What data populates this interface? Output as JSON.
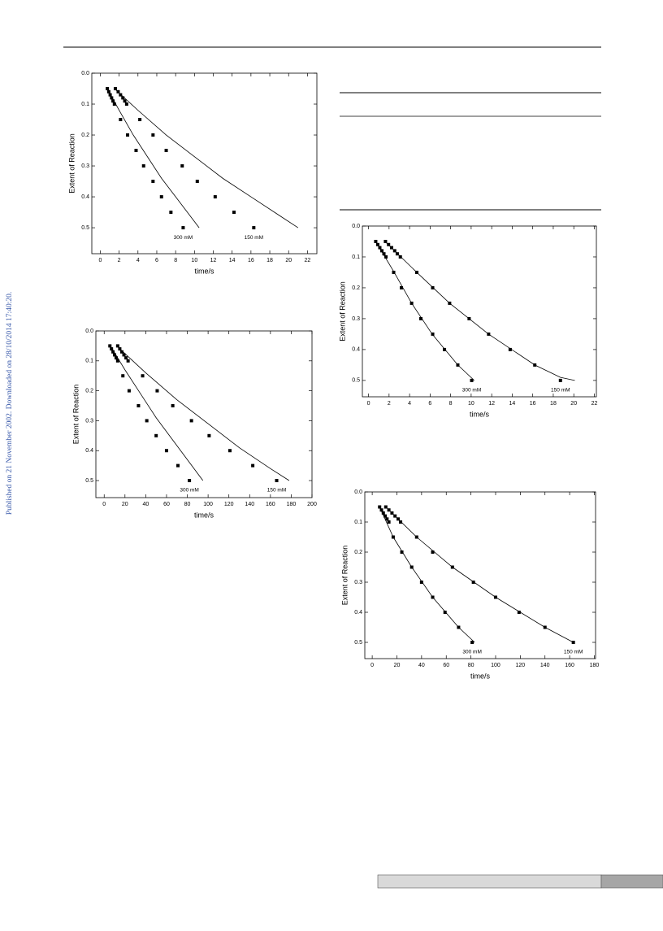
{
  "sidebar": "Published on 21 November 2002. Downloaded on 28/10/2014 17:40:20.",
  "chart_data": [
    {
      "type": "scatter",
      "x_label": "time/s",
      "y_label": "Extent of Reaction",
      "xlim": [
        -0.9,
        23
      ],
      "ylim": [
        0.584,
        0
      ],
      "xticks": [
        0,
        2,
        4,
        6,
        8,
        10,
        12,
        14,
        16,
        18,
        20,
        22
      ],
      "yticks": [
        {
          "value": 0,
          "label": "0.0"
        },
        0.1,
        0.2,
        0.3,
        0.4,
        0.5
      ],
      "color": "#000000",
      "series": [
        {
          "name": "300 mM",
          "x": [
            0.75,
            0.9,
            1.05,
            1.2,
            1.35,
            1.5,
            2.15,
            2.9,
            3.8,
            4.6,
            5.6,
            6.5,
            7.5,
            8.8
          ],
          "values": [
            0.05,
            0.06,
            0.07,
            0.08,
            0.09,
            0.1,
            0.15,
            0.2,
            0.25,
            0.3,
            0.35,
            0.4,
            0.45,
            0.5
          ],
          "fit_x": [
            0.75,
            2,
            3.5,
            5,
            6.5,
            8,
            10.5
          ],
          "fit_values": [
            0.05,
            0.12,
            0.2,
            0.27,
            0.34,
            0.4,
            0.5
          ]
        },
        {
          "name": "150 mM",
          "x": [
            1.6,
            1.9,
            2.15,
            2.4,
            2.6,
            2.8,
            4.2,
            5.6,
            7.0,
            8.7,
            10.3,
            12.2,
            14.2,
            16.3
          ],
          "values": [
            0.05,
            0.06,
            0.07,
            0.08,
            0.09,
            0.1,
            0.15,
            0.2,
            0.25,
            0.3,
            0.35,
            0.4,
            0.45,
            0.5
          ],
          "fit_x": [
            1.5,
            4,
            7,
            10,
            13,
            16,
            19,
            21
          ],
          "fit_values": [
            0.05,
            0.12,
            0.2,
            0.27,
            0.34,
            0.4,
            0.46,
            0.5
          ]
        }
      ]
    },
    {
      "type": "scatter",
      "x_label": "time/s",
      "y_label": "Extent of Reaction",
      "xlim": [
        -8,
        200
      ],
      "ylim": [
        0.557,
        0
      ],
      "xticks": [
        0,
        20,
        40,
        60,
        80,
        100,
        120,
        140,
        160,
        180,
        200
      ],
      "yticks": [
        {
          "value": 0,
          "label": "0.0"
        },
        0.1,
        0.2,
        0.3,
        0.4,
        0.5
      ],
      "color": "#000000",
      "series": [
        {
          "name": "300 mM",
          "x": [
            5.5,
            7,
            8.5,
            10,
            11.5,
            13,
            18,
            24,
            33,
            41,
            50,
            60,
            71,
            82
          ],
          "values": [
            0.05,
            0.06,
            0.07,
            0.08,
            0.09,
            0.1,
            0.15,
            0.2,
            0.25,
            0.3,
            0.35,
            0.4,
            0.45,
            0.5
          ],
          "fit_x": [
            6,
            20,
            35,
            50,
            65,
            80,
            95
          ],
          "fit_values": [
            0.05,
            0.13,
            0.21,
            0.29,
            0.36,
            0.43,
            0.5
          ]
        },
        {
          "name": "150 mM",
          "x": [
            13,
            15,
            17,
            19,
            21,
            23,
            37,
            51,
            66,
            84,
            101,
            121,
            143,
            166
          ],
          "values": [
            0.05,
            0.06,
            0.07,
            0.08,
            0.09,
            0.1,
            0.15,
            0.2,
            0.25,
            0.3,
            0.35,
            0.4,
            0.45,
            0.5
          ],
          "fit_x": [
            12,
            40,
            70,
            100,
            130,
            160,
            178
          ],
          "fit_values": [
            0.05,
            0.14,
            0.23,
            0.31,
            0.39,
            0.46,
            0.5
          ]
        }
      ]
    },
    {
      "type": "scatter",
      "x_label": "time/s",
      "y_label": "Extent of Reaction",
      "xlim": [
        -0.6,
        22.2
      ],
      "ylim": [
        0.553,
        0
      ],
      "xticks": [
        0,
        2,
        4,
        6,
        8,
        10,
        12,
        14,
        16,
        18,
        20,
        22
      ],
      "yticks": [
        {
          "value": 0,
          "label": "0.0"
        },
        0.1,
        0.2,
        0.3,
        0.4,
        0.5
      ],
      "color": "#000000",
      "series": [
        {
          "name": "300 mM",
          "x": [
            0.7,
            0.9,
            1.1,
            1.3,
            1.5,
            1.7,
            2.45,
            3.2,
            4.2,
            5.1,
            6.25,
            7.4,
            8.7,
            10.05
          ],
          "values": [
            0.05,
            0.06,
            0.07,
            0.08,
            0.09,
            0.1,
            0.15,
            0.2,
            0.25,
            0.3,
            0.35,
            0.4,
            0.45,
            0.5
          ],
          "fit_x": [
            0.7,
            2.5,
            4.2,
            6.2,
            8.7,
            10.3
          ],
          "fit_values": [
            0.05,
            0.15,
            0.25,
            0.35,
            0.45,
            0.5
          ]
        },
        {
          "name": "150 mM",
          "x": [
            1.65,
            1.95,
            2.25,
            2.55,
            2.8,
            3.1,
            4.7,
            6.25,
            7.9,
            9.8,
            11.7,
            13.8,
            16.2,
            18.7
          ],
          "values": [
            0.05,
            0.06,
            0.07,
            0.08,
            0.09,
            0.1,
            0.15,
            0.2,
            0.25,
            0.3,
            0.35,
            0.4,
            0.45,
            0.5
          ],
          "fit_x": [
            1.6,
            4.7,
            7.9,
            11.7,
            16.2,
            18.7,
            20.1
          ],
          "fit_values": [
            0.05,
            0.15,
            0.25,
            0.35,
            0.45,
            0.49,
            0.5
          ]
        }
      ]
    },
    {
      "type": "scatter",
      "x_label": "time/s",
      "y_label": "Extent of Reaction",
      "xlim": [
        -6,
        181
      ],
      "ylim": [
        0.554,
        0
      ],
      "xticks": [
        0,
        20,
        40,
        60,
        80,
        100,
        120,
        140,
        160,
        180
      ],
      "yticks": [
        {
          "value": 0,
          "label": "0.0"
        },
        0.1,
        0.2,
        0.3,
        0.4,
        0.5
      ],
      "color": "#000000",
      "series": [
        {
          "name": "300 mM",
          "x": [
            6,
            7.5,
            9,
            10.5,
            12,
            13.5,
            17,
            24,
            32,
            40,
            49,
            59,
            70,
            81
          ],
          "values": [
            0.05,
            0.06,
            0.07,
            0.08,
            0.09,
            0.1,
            0.15,
            0.2,
            0.25,
            0.3,
            0.35,
            0.4,
            0.45,
            0.5
          ],
          "fit_x": [
            6,
            17,
            32,
            49,
            70,
            83
          ],
          "fit_values": [
            0.05,
            0.15,
            0.25,
            0.35,
            0.45,
            0.5
          ]
        },
        {
          "name": "150 mM",
          "x": [
            11,
            13.5,
            16,
            18.5,
            21,
            23,
            36,
            49,
            65,
            82,
            100,
            119,
            140,
            163
          ],
          "values": [
            0.05,
            0.06,
            0.07,
            0.08,
            0.09,
            0.1,
            0.15,
            0.2,
            0.25,
            0.3,
            0.35,
            0.4,
            0.45,
            0.5
          ],
          "fit_x": [
            11,
            36,
            65,
            100,
            140,
            163
          ],
          "fit_values": [
            0.05,
            0.15,
            0.25,
            0.35,
            0.45,
            0.5
          ]
        }
      ]
    }
  ]
}
